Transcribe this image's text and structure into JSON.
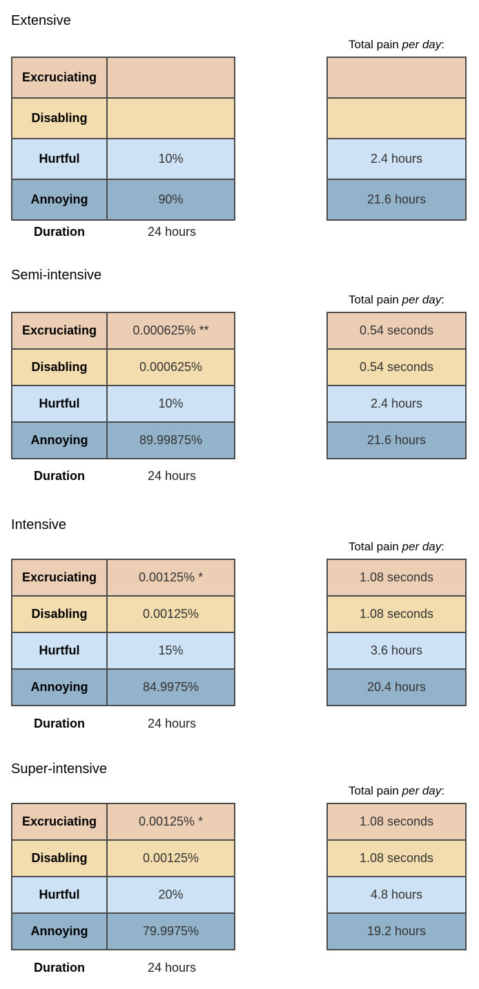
{
  "caption": {
    "prefix": "Total pain ",
    "emphasis": "per day",
    "suffix": ":"
  },
  "duration_label": "Duration",
  "row_labels": {
    "excruciating": "Excruciating",
    "disabling": "Disabling",
    "hurtful": "Hurtful",
    "annoying": "Annoying"
  },
  "colors": {
    "excruciating": "#ecceb4",
    "disabling": "#f3ddae",
    "hurtful": "#cde2f4",
    "annoying": "#93b3cb",
    "border": "#4a4a4a"
  },
  "sections": [
    {
      "title": "Extensive",
      "values": {
        "excruciating": "",
        "disabling": "",
        "hurtful": "10%",
        "annoying": "90%"
      },
      "totals": {
        "excruciating": "",
        "disabling": "",
        "hurtful": "2.4 hours",
        "annoying": "21.6 hours"
      },
      "duration": "24 hours"
    },
    {
      "title": "Semi-intensive",
      "values": {
        "excruciating": "0.000625% **",
        "disabling": "0.000625%",
        "hurtful": "10%",
        "annoying": "89.99875%"
      },
      "totals": {
        "excruciating": "0.54 seconds",
        "disabling": "0.54 seconds",
        "hurtful": "2.4 hours",
        "annoying": "21.6 hours"
      },
      "duration": "24 hours"
    },
    {
      "title": "Intensive",
      "values": {
        "excruciating": "0.00125% *",
        "disabling": "0.00125%",
        "hurtful": "15%",
        "annoying": "84.9975%"
      },
      "totals": {
        "excruciating": "1.08 seconds",
        "disabling": "1.08 seconds",
        "hurtful": "3.6 hours",
        "annoying": "20.4 hours"
      },
      "duration": "24 hours"
    },
    {
      "title": "Super-intensive",
      "values": {
        "excruciating": "0.00125% *",
        "disabling": "0.00125%",
        "hurtful": "20%",
        "annoying": "79.9975%"
      },
      "totals": {
        "excruciating": "1.08 seconds",
        "disabling": "1.08 seconds",
        "hurtful": "4.8 hours",
        "annoying": "19.2 hours"
      },
      "duration": "24 hours"
    }
  ]
}
